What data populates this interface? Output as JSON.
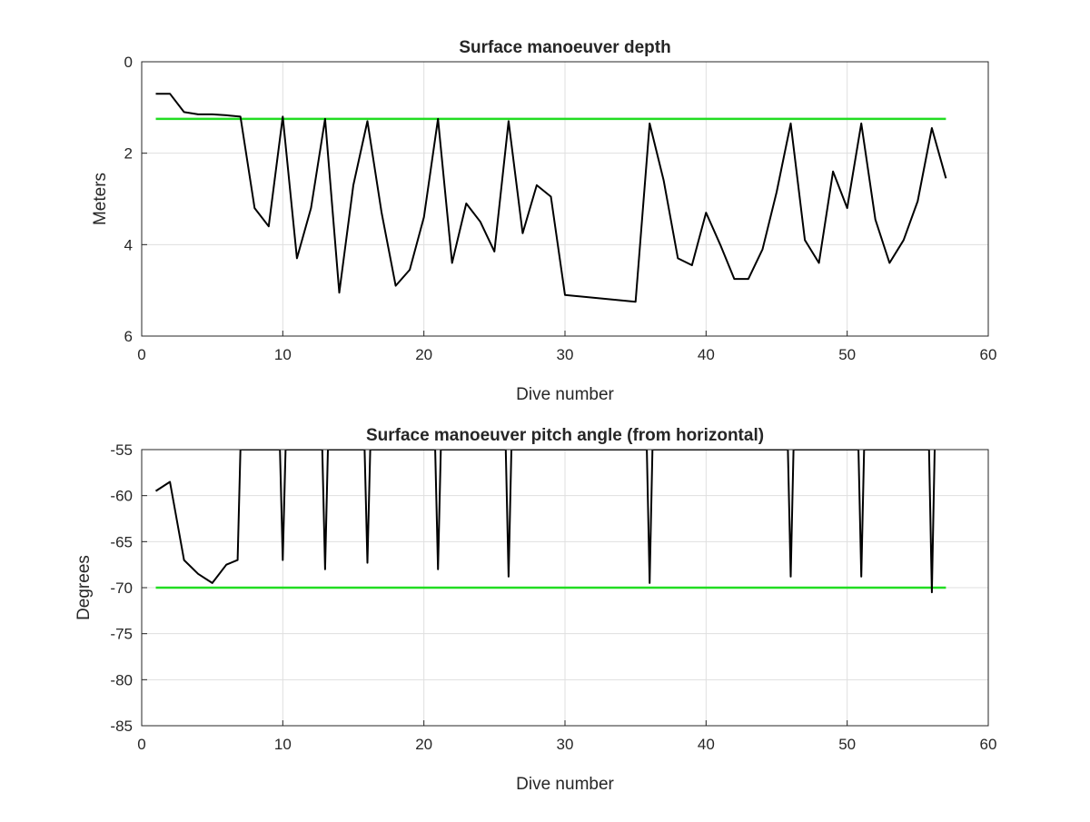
{
  "chart_data": [
    {
      "type": "line",
      "title": "Surface manoeuver depth",
      "xlabel": "Dive number",
      "ylabel": "Meters",
      "xlim": [
        0,
        60
      ],
      "ylim": [
        0,
        6
      ],
      "y_reversed": true,
      "xticks": [
        "0",
        "10",
        "20",
        "30",
        "40",
        "50",
        "60"
      ],
      "yticks": [
        "0",
        "2",
        "4",
        "6"
      ],
      "grid": true,
      "threshold": {
        "value": 1.25,
        "x_range": [
          1,
          57
        ],
        "color": "#22dd22"
      },
      "series": [
        {
          "color": "#000000",
          "x": [
            1,
            2,
            3,
            4,
            5,
            6,
            7,
            8,
            9,
            10,
            11,
            12,
            13,
            14,
            15,
            16,
            17,
            18,
            19,
            20,
            21,
            22,
            23,
            24,
            25,
            26,
            27,
            28,
            29,
            30,
            35,
            36,
            37,
            38,
            39,
            40,
            41,
            42,
            43,
            44,
            45,
            46,
            47,
            48,
            49,
            50,
            51,
            52,
            53,
            54,
            55,
            56,
            57
          ],
          "y": [
            0.7,
            0.7,
            1.1,
            1.15,
            1.15,
            1.17,
            1.2,
            3.2,
            3.6,
            1.2,
            4.3,
            3.2,
            1.25,
            5.05,
            2.7,
            1.3,
            3.3,
            4.9,
            4.55,
            3.4,
            1.25,
            4.4,
            3.1,
            3.5,
            4.15,
            1.3,
            3.75,
            2.7,
            2.95,
            5.1,
            5.25,
            1.35,
            2.6,
            4.3,
            4.45,
            3.3,
            4.0,
            4.75,
            4.75,
            4.1,
            2.85,
            1.35,
            3.9,
            4.4,
            2.4,
            3.2,
            1.35,
            3.45,
            4.4,
            3.9,
            3.05,
            1.45,
            2.55
          ]
        }
      ]
    },
    {
      "type": "line",
      "title": "Surface manoeuver pitch angle (from horizontal)",
      "xlabel": "Dive number",
      "ylabel": "Degrees",
      "xlim": [
        0,
        60
      ],
      "ylim": [
        -85,
        -55
      ],
      "xticks": [
        "0",
        "10",
        "20",
        "30",
        "40",
        "50",
        "60"
      ],
      "yticks": [
        "-55",
        "-60",
        "-65",
        "-70",
        "-75",
        "-80",
        "-85"
      ],
      "grid": true,
      "threshold": {
        "value": -70,
        "x_range": [
          1,
          57
        ],
        "color": "#22dd22"
      },
      "series": [
        {
          "color": "#000000",
          "x": [
            1,
            2,
            3,
            4,
            5,
            6,
            6.8,
            7,
            7.2,
            9.8,
            10,
            10.2,
            12.8,
            13,
            13.2,
            15.8,
            16,
            16.2,
            20.8,
            21,
            21.2,
            25.8,
            26,
            26.2,
            35.8,
            36,
            36.2,
            45.8,
            46,
            46.2,
            50.8,
            51,
            51.2,
            55.8,
            56,
            56.2
          ],
          "y": [
            -59.5,
            -58.5,
            -67,
            -68.5,
            -69.5,
            -67.5,
            -67,
            -55,
            -55,
            -55,
            -67,
            -55,
            -55,
            -68,
            -55,
            -55,
            -67.3,
            -55,
            -55,
            -68,
            -55,
            -55,
            -68.8,
            -55,
            -55,
            -69.5,
            -55,
            -55,
            -68.8,
            -55,
            -55,
            -68.8,
            -55,
            -55,
            -70.5,
            -55
          ]
        }
      ]
    }
  ]
}
